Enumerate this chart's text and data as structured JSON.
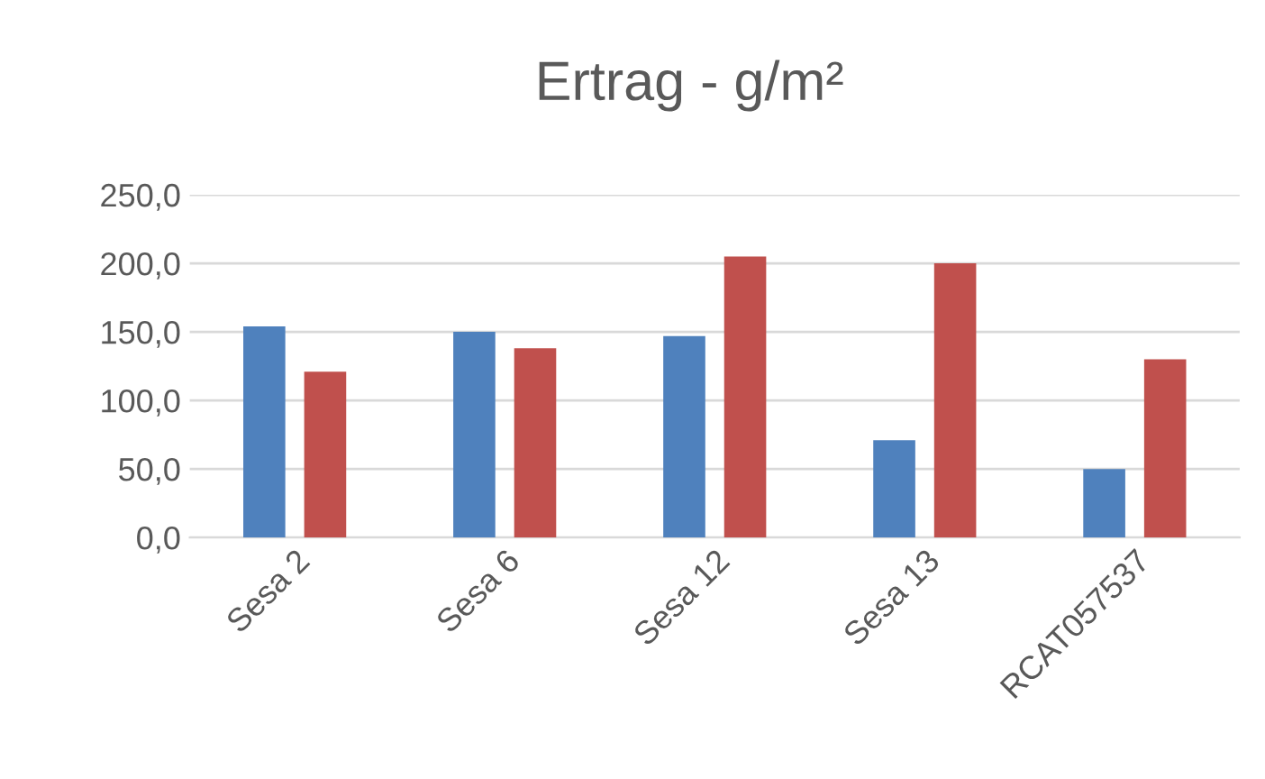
{
  "chart_data": {
    "type": "bar",
    "title": "Ertrag - g/m²",
    "categories": [
      "Sesa 2",
      "Sesa 6",
      "Sesa 12",
      "Sesa 13",
      "RCAT057537"
    ],
    "series": [
      {
        "color": "#4f81bd",
        "values": [
          154,
          150,
          147,
          71,
          50
        ]
      },
      {
        "color": "#c0504d",
        "values": [
          121,
          138,
          205,
          200,
          130
        ]
      }
    ],
    "ylim": [
      0,
      250
    ],
    "yticks": [
      {
        "value": 0,
        "label": "0,0"
      },
      {
        "value": 50,
        "label": "50,0"
      },
      {
        "value": 100,
        "label": "100,0"
      },
      {
        "value": 150,
        "label": "150,0"
      },
      {
        "value": 200,
        "label": "200,0"
      },
      {
        "value": 250,
        "label": "250,0"
      }
    ],
    "grid": "y",
    "legend": false
  }
}
